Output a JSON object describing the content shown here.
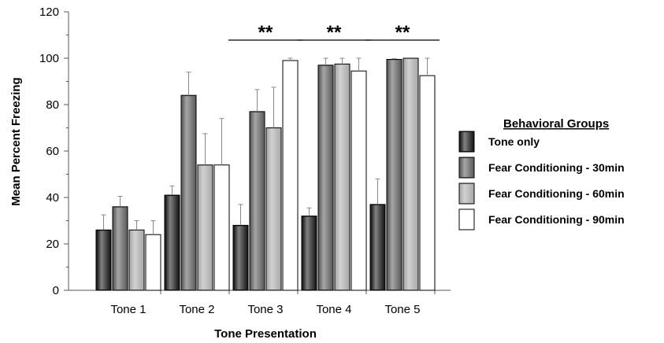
{
  "chart_data": {
    "type": "bar",
    "title": "",
    "xlabel": "Tone Presentation",
    "ylabel": "Mean Percent Freezing",
    "ylim": [
      0,
      120
    ],
    "yticks": [
      0,
      20,
      40,
      60,
      80,
      100,
      120
    ],
    "grid": false,
    "categories": [
      "Tone 1",
      "Tone 2",
      "Tone 3",
      "Tone 4",
      "Tone 5"
    ],
    "series": [
      {
        "name": "Tone only",
        "color": "#1a1a1a",
        "values": [
          26,
          41,
          28,
          32,
          37
        ],
        "error": [
          6.5,
          4,
          9,
          3.5,
          11
        ]
      },
      {
        "name": "Fear Conditioning - 30min",
        "color": "#5e5e5e",
        "values": [
          36,
          84,
          77,
          97,
          99.5
        ],
        "error": [
          4.5,
          10,
          9.5,
          3,
          0.3
        ]
      },
      {
        "name": "Fear Conditioning - 60min",
        "color": "#ababab",
        "values": [
          26,
          54,
          70,
          97.5,
          100
        ],
        "error": [
          4,
          13.5,
          17.5,
          2.5,
          0
        ]
      },
      {
        "name": "Fear Conditioning - 90min",
        "color": "#ffffff",
        "values": [
          24,
          54,
          99,
          94.5,
          92.5
        ],
        "error": [
          6,
          20,
          1,
          5.5,
          7.5
        ]
      }
    ],
    "legend": {
      "title": "Behavioral Groups",
      "position": "right"
    },
    "annotations": [
      {
        "text": "**",
        "category": "Tone 3"
      },
      {
        "text": "**",
        "category": "Tone 4"
      },
      {
        "text": "**",
        "category": "Tone 5"
      }
    ]
  }
}
